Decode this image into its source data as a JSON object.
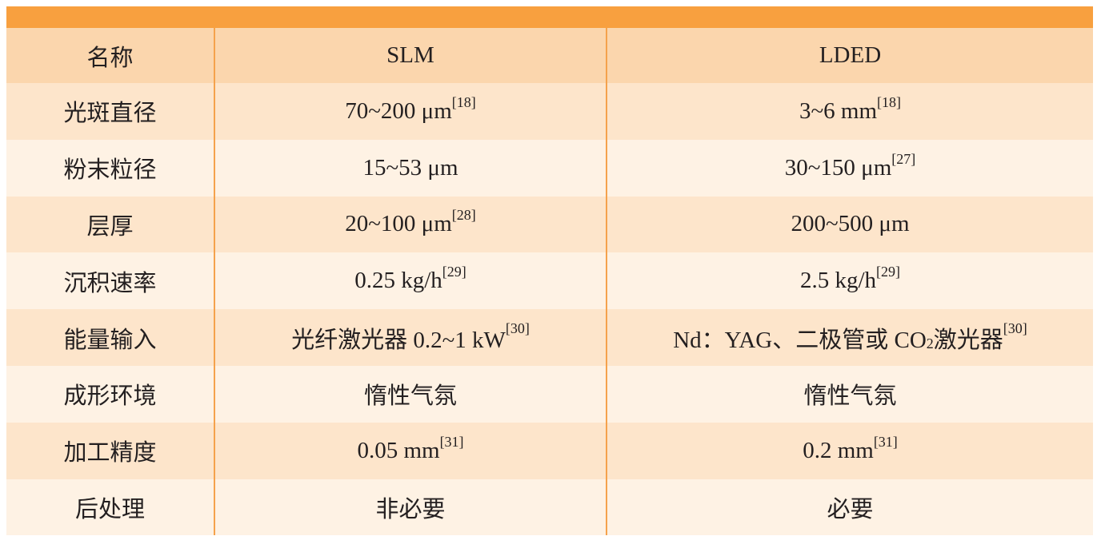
{
  "table": {
    "header": [
      "名称",
      "SLM",
      "LDED"
    ],
    "rows": [
      [
        "光斑直径",
        [
          "70~200 μm",
          {
            "sup": "[18]"
          }
        ],
        [
          "3~6 mm",
          {
            "sup": "[18]"
          }
        ]
      ],
      [
        "粉末粒径",
        [
          "15~53 μm"
        ],
        [
          "30~150 μm",
          {
            "sup": "[27]"
          }
        ]
      ],
      [
        "层厚",
        [
          "20~100 μm",
          {
            "sup": "[28]"
          }
        ],
        [
          "200~500 μm"
        ]
      ],
      [
        "沉积速率",
        [
          "0.25 kg/h",
          {
            "sup": "[29]"
          }
        ],
        [
          "2.5 kg/h",
          {
            "sup": "[29]"
          }
        ]
      ],
      [
        "能量输入",
        [
          "光纤激光器 0.2~1 kW",
          {
            "sup": "[30]"
          }
        ],
        [
          "Nd：YAG、二极管或 CO",
          {
            "sub": "2"
          },
          " 激光器 ",
          {
            "sup": "[30]"
          }
        ]
      ],
      [
        "成形环境",
        [
          "惰性气氛"
        ],
        [
          "惰性气氛"
        ]
      ],
      [
        "加工精度",
        [
          "0.05 mm",
          {
            "sup": "[31]"
          }
        ],
        [
          "0.2 mm",
          {
            "sup": "[31]"
          }
        ]
      ],
      [
        "后处理",
        [
          "非必要"
        ],
        [
          "必要"
        ]
      ]
    ]
  }
}
